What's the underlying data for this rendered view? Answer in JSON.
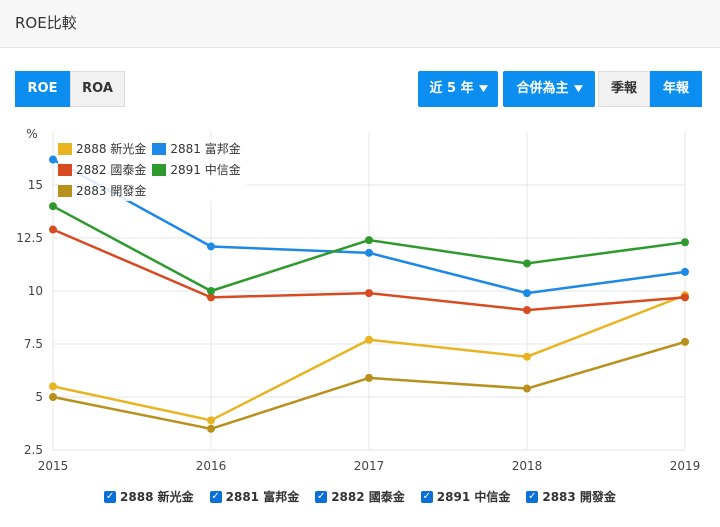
{
  "header": {
    "title": "ROE比較"
  },
  "metric_tabs": [
    {
      "label": "ROE",
      "active": true
    },
    {
      "label": "ROA",
      "active": false
    }
  ],
  "controls": {
    "period": "近 5 年",
    "basis": "合併為主",
    "freq": [
      {
        "label": "季報",
        "active": false
      },
      {
        "label": "年報",
        "active": true
      }
    ]
  },
  "colors": {
    "accent": "#0b8ef0"
  },
  "chart_data": {
    "type": "line",
    "ylabel": "%",
    "x": [
      "2015",
      "2016",
      "2017",
      "2018",
      "2019"
    ],
    "ylim": [
      2.5,
      17.5
    ],
    "yticks": [
      2.5,
      5,
      7.5,
      10,
      12.5,
      15
    ],
    "series": [
      {
        "name": "2888 新光金",
        "color": "#e8b422",
        "values": [
          5.5,
          3.9,
          7.7,
          6.9,
          9.8
        ]
      },
      {
        "name": "2881 富邦金",
        "color": "#1e88e5",
        "values": [
          16.2,
          12.1,
          11.8,
          9.9,
          10.9
        ]
      },
      {
        "name": "2882 國泰金",
        "color": "#d84b20",
        "values": [
          12.9,
          9.7,
          9.9,
          9.1,
          9.7
        ]
      },
      {
        "name": "2891 中信金",
        "color": "#2e9a2e",
        "values": [
          14.0,
          10.0,
          12.4,
          11.3,
          12.3
        ]
      },
      {
        "name": "2883 開發金",
        "color": "#b8901c",
        "values": [
          5.0,
          3.5,
          5.9,
          5.4,
          7.6
        ]
      }
    ]
  }
}
